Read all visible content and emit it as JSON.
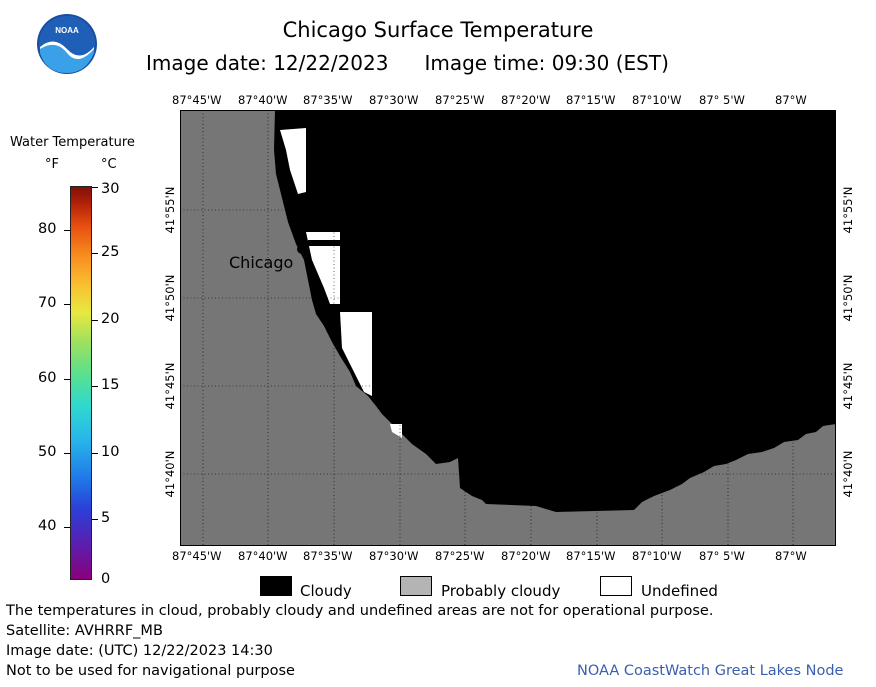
{
  "header": {
    "title": "Chicago Surface Temperature",
    "image_date": "Image date: 12/22/2023",
    "image_time": "Image time: 09:30 (EST)"
  },
  "legend": {
    "title": "Water Temperature",
    "unit_f": "°F",
    "unit_c": "°C",
    "f_ticks": [
      "80",
      "70",
      "60",
      "50",
      "40"
    ],
    "c_ticks": [
      "30",
      "25",
      "20",
      "15",
      "10",
      "5",
      "0"
    ]
  },
  "axes": {
    "lon_labels": [
      "87°45'W",
      "87°40'W",
      "87°35'W",
      "87°30'W",
      "87°25'W",
      "87°20'W",
      "87°15'W",
      "87°10'W",
      "87° 5'W",
      "87°W"
    ],
    "lat_labels": [
      "41°55'N",
      "41°50'N",
      "41°45'N",
      "41°40'N"
    ]
  },
  "map": {
    "city_label": "Chicago",
    "colors": {
      "land": "#767676",
      "cloudy": "#000000",
      "undefined": "#ffffff",
      "probably_cloudy": "#b4b4b4"
    }
  },
  "key": {
    "cloudy": "Cloudy",
    "probably_cloudy": "Probably cloudy",
    "undefined": "Undefined"
  },
  "footer": {
    "note": "The temperatures in cloud, probably cloudy and undefined areas are not for operational purpose.",
    "satellite": "Satellite: AVHRRF_MB",
    "utc_date": "Image date: (UTC) 12/22/2023  14:30",
    "nav_note": "Not to be used for navigational purpose",
    "credit": "NOAA CoastWatch Great Lakes Node",
    "credit_color": "#3a5fb0"
  },
  "logo": {
    "text": "NOAA"
  }
}
